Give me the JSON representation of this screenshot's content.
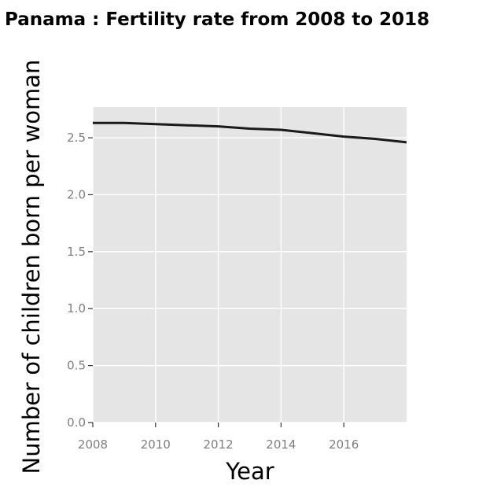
{
  "chart_data": {
    "type": "line",
    "title": "Panama : Fertility rate from 2008 to 2018",
    "xlabel": "Year",
    "ylabel": "Number of children born per woman",
    "x": [
      2008,
      2009,
      2010,
      2011,
      2012,
      2013,
      2014,
      2015,
      2016,
      2017,
      2018
    ],
    "series": [
      {
        "values": [
          2.63,
          2.63,
          2.62,
          2.61,
          2.6,
          2.58,
          2.57,
          2.54,
          2.51,
          2.49,
          2.46
        ]
      }
    ],
    "xticks": [
      2008,
      2010,
      2012,
      2014,
      2016
    ],
    "yticks": [
      0.0,
      0.5,
      1.0,
      1.5,
      2.0,
      2.5
    ],
    "xlim": [
      2008,
      2018
    ],
    "ylim": [
      0.0,
      2.77
    ],
    "grid": true,
    "legend": "none",
    "colors": {
      "panel": "#e5e5e5",
      "grid": "#ffffff",
      "line": "#1a1a1a",
      "tick": "#7f7f7f"
    }
  }
}
